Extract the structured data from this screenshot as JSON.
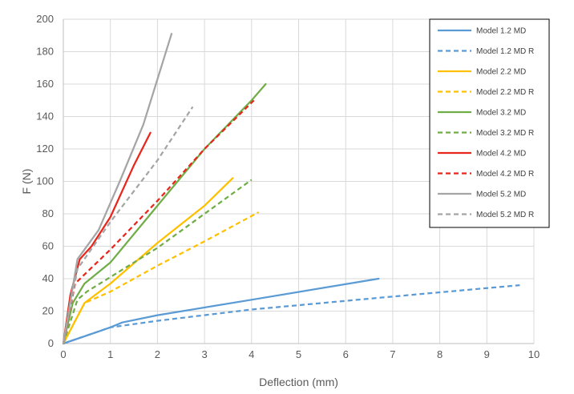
{
  "chart_data": {
    "type": "line",
    "title": "",
    "xlabel": "Deflection (mm)",
    "ylabel": "F (N)",
    "xlim": [
      0,
      10
    ],
    "ylim": [
      0,
      200
    ],
    "xticks": [
      "0",
      "1",
      "2",
      "3",
      "4",
      "5",
      "6",
      "7",
      "8",
      "9",
      "10"
    ],
    "yticks": [
      "0",
      "20",
      "40",
      "60",
      "80",
      "100",
      "120",
      "140",
      "160",
      "180",
      "200"
    ],
    "grid": true,
    "legend_position": "top-right",
    "series": [
      {
        "name": "Model 1.2 MD",
        "color": "#5b9bd5",
        "dashed": false,
        "points": [
          [
            0,
            0
          ],
          [
            1,
            10
          ],
          [
            1.25,
            13
          ],
          [
            2,
            17.5
          ],
          [
            4,
            27
          ],
          [
            6.7,
            40
          ]
        ]
      },
      {
        "name": "Model 1.2 MD R",
        "color": "#5b9bd5",
        "dashed": true,
        "points": [
          [
            0,
            0
          ],
          [
            1,
            10
          ],
          [
            2,
            14
          ],
          [
            4,
            21
          ],
          [
            7,
            29
          ],
          [
            9.7,
            36
          ]
        ]
      },
      {
        "name": "Model 2.2 MD",
        "color": "#ffc000",
        "dashed": false,
        "points": [
          [
            0,
            0
          ],
          [
            0.45,
            25
          ],
          [
            1,
            37
          ],
          [
            2,
            62
          ],
          [
            3,
            85
          ],
          [
            3.6,
            102
          ]
        ]
      },
      {
        "name": "Model 2.2 MD R",
        "color": "#ffc000",
        "dashed": true,
        "points": [
          [
            0,
            0
          ],
          [
            0.45,
            25
          ],
          [
            1,
            32
          ],
          [
            2,
            48
          ],
          [
            3,
            63
          ],
          [
            4.15,
            81
          ]
        ]
      },
      {
        "name": "Model 3.2 MD",
        "color": "#70ad47",
        "dashed": false,
        "points": [
          [
            0,
            0
          ],
          [
            0.2,
            25
          ],
          [
            0.45,
            37
          ],
          [
            1,
            50
          ],
          [
            2,
            85
          ],
          [
            3,
            120
          ],
          [
            4,
            150
          ],
          [
            4.3,
            160
          ]
        ]
      },
      {
        "name": "Model 3.2 MD R",
        "color": "#70ad47",
        "dashed": true,
        "points": [
          [
            0,
            0
          ],
          [
            0.3,
            27
          ],
          [
            0.5,
            32
          ],
          [
            1,
            41
          ],
          [
            2,
            59
          ],
          [
            3,
            80
          ],
          [
            4,
            101
          ]
        ]
      },
      {
        "name": "Model 4.2 MD",
        "color": "#e8261b",
        "dashed": false,
        "points": [
          [
            0,
            0
          ],
          [
            0.15,
            30
          ],
          [
            0.35,
            52
          ],
          [
            0.6,
            60
          ],
          [
            1,
            78
          ],
          [
            1.5,
            110
          ],
          [
            1.85,
            130
          ]
        ]
      },
      {
        "name": "Model 4.2 MD R",
        "color": "#e8261b",
        "dashed": true,
        "points": [
          [
            0,
            0
          ],
          [
            0.25,
            37
          ],
          [
            1,
            58
          ],
          [
            2,
            88
          ],
          [
            3,
            120
          ],
          [
            4.05,
            150
          ]
        ]
      },
      {
        "name": "Model 5.2 MD",
        "color": "#a5a5a5",
        "dashed": false,
        "points": [
          [
            0,
            0
          ],
          [
            0.3,
            52
          ],
          [
            0.75,
            70
          ],
          [
            1.2,
            100
          ],
          [
            1.7,
            135
          ],
          [
            2.3,
            191
          ]
        ]
      },
      {
        "name": "Model 5.2 MD R",
        "color": "#a5a5a5",
        "dashed": true,
        "points": [
          [
            0,
            0
          ],
          [
            0.3,
            46
          ],
          [
            1,
            75
          ],
          [
            2,
            113
          ],
          [
            2.75,
            146
          ]
        ]
      }
    ]
  }
}
